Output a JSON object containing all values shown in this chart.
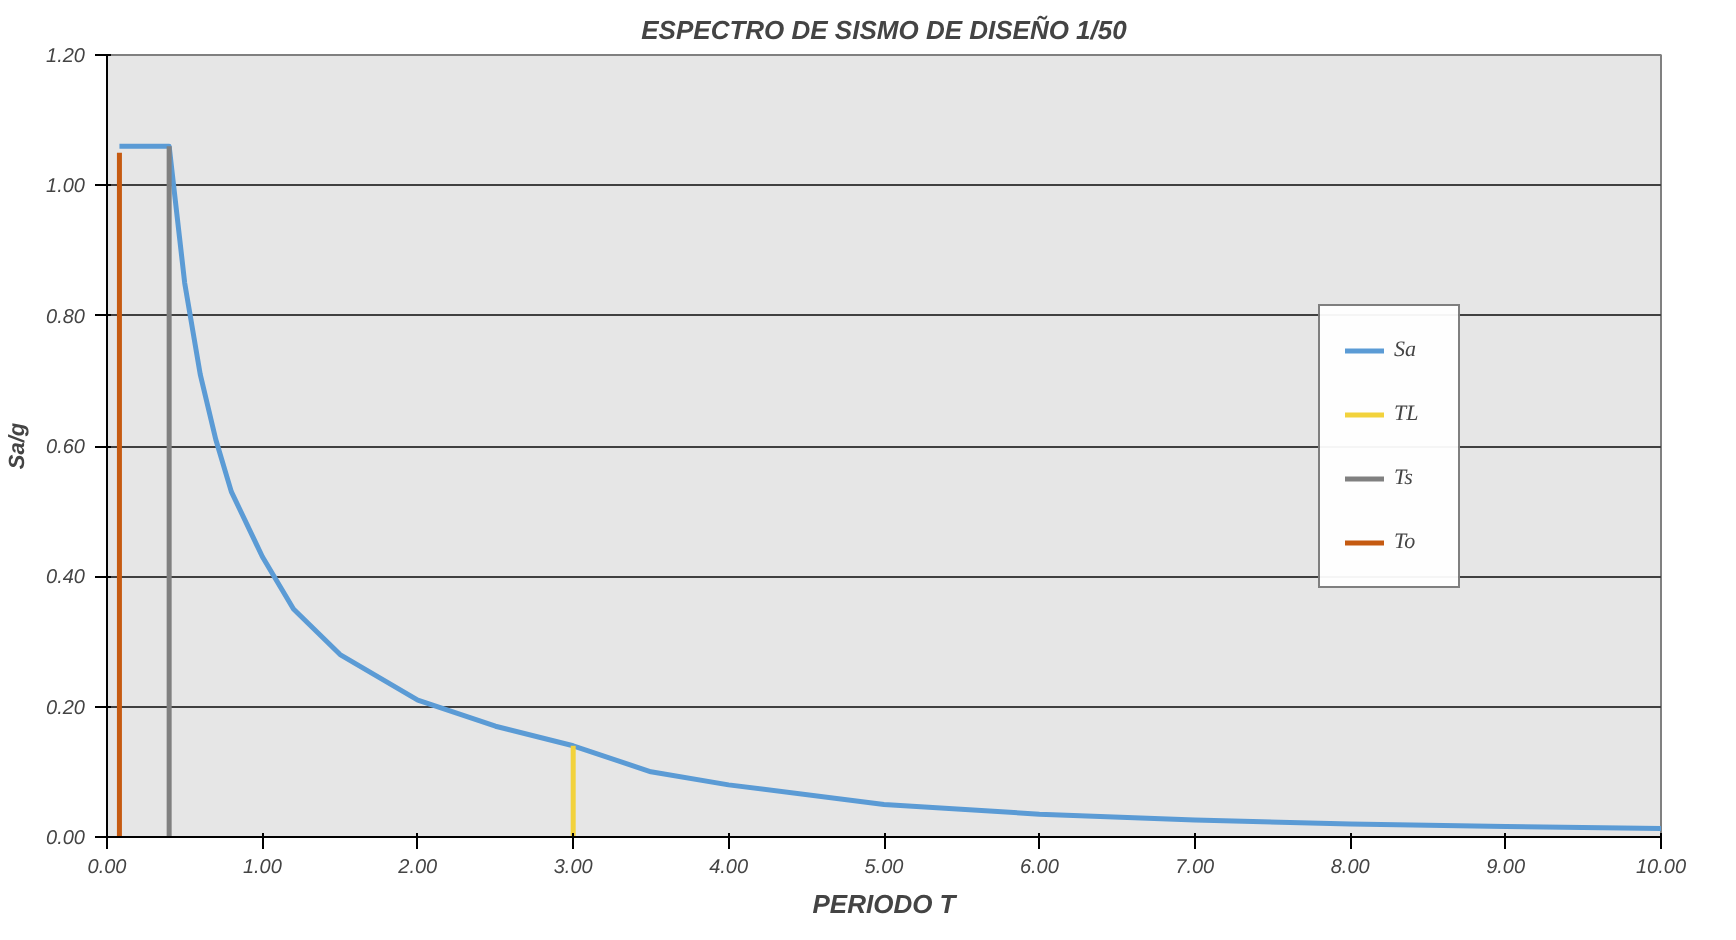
{
  "chart_data": {
    "type": "line",
    "title": "ESPECTRO DE SISMO DE DISEÑO 1/50",
    "xlabel": "PERIODO T",
    "ylabel": "Sa/g",
    "xlim": [
      0,
      10
    ],
    "ylim": [
      0,
      1.2
    ],
    "xticks": [
      {
        "value": 0,
        "label": "0.00"
      },
      {
        "value": 1,
        "label": "1.00"
      },
      {
        "value": 2,
        "label": "2.00"
      },
      {
        "value": 3,
        "label": "3.00"
      },
      {
        "value": 4,
        "label": "4.00"
      },
      {
        "value": 5,
        "label": "5.00"
      },
      {
        "value": 6,
        "label": "6.00"
      },
      {
        "value": 7,
        "label": "7.00"
      },
      {
        "value": 8,
        "label": "8.00"
      },
      {
        "value": 9,
        "label": "9.00"
      },
      {
        "value": 10,
        "label": "10.00"
      }
    ],
    "yticks": [
      {
        "value": 0,
        "label": "0.00"
      },
      {
        "value": 0.2,
        "label": "0.20"
      },
      {
        "value": 0.4,
        "label": "0.40"
      },
      {
        "value": 0.6,
        "label": "0.60"
      },
      {
        "value": 0.8,
        "label": "0.80"
      },
      {
        "value": 1.0,
        "label": "1.00"
      },
      {
        "value": 1.2,
        "label": "1.20"
      }
    ],
    "grid": "y",
    "legend": "right",
    "marker": "none",
    "line_style": "solid",
    "series": [
      {
        "name": "Sa",
        "color": "#5b9bd5",
        "x": [
          0.08,
          0.4,
          0.5,
          0.6,
          0.7,
          0.8,
          1.0,
          1.2,
          1.5,
          2.0,
          2.5,
          3.0,
          3.5,
          4.0,
          5.0,
          6.0,
          7.0,
          8.0,
          9.0,
          10.0
        ],
        "values": [
          1.06,
          1.06,
          0.85,
          0.71,
          0.61,
          0.53,
          0.43,
          0.35,
          0.28,
          0.21,
          0.17,
          0.14,
          0.1,
          0.08,
          0.05,
          0.035,
          0.026,
          0.02,
          0.016,
          0.013
        ]
      },
      {
        "name": "TL",
        "color": "#f2d23c",
        "x": [
          3.0,
          3.0
        ],
        "values": [
          0,
          0.14
        ]
      },
      {
        "name": "Ts",
        "color": "#808080",
        "x": [
          0.4,
          0.4
        ],
        "values": [
          0,
          1.06
        ]
      },
      {
        "name": "To",
        "color": "#c55a11",
        "x": [
          0.08,
          0.08
        ],
        "values": [
          0,
          1.05
        ]
      }
    ]
  }
}
